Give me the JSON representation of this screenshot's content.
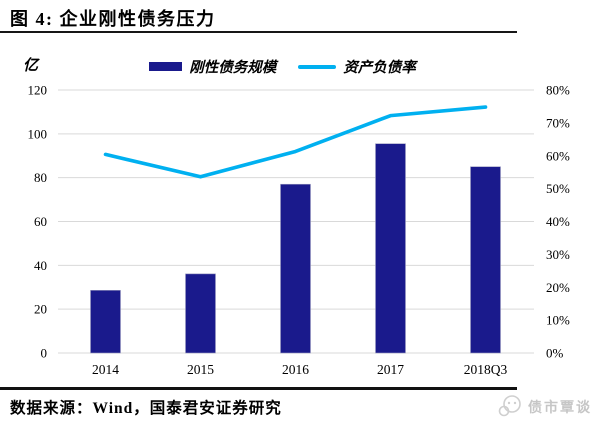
{
  "header": {
    "title": "图 4: 企业刚性债务压力"
  },
  "legend": [
    {
      "label": "刚性债务规模",
      "type": "bar",
      "color": "#1a1a8c"
    },
    {
      "label": "资产负债率",
      "type": "line",
      "color": "#00b0f0"
    }
  ],
  "chart_data": {
    "type": "bar",
    "categories": [
      "2014",
      "2015",
      "2016",
      "2017",
      "2018Q3"
    ],
    "series": [
      {
        "name": "刚性债务规模",
        "type": "bar",
        "axis": "left",
        "color": "#1a1a8c",
        "values": [
          28.6,
          36.1,
          77,
          95.5,
          85
        ]
      },
      {
        "name": "资产负债率",
        "type": "line",
        "axis": "right",
        "color": "#00b0f0",
        "values": [
          60.4,
          53.6,
          61.3,
          72.2,
          74.8
        ]
      }
    ],
    "left_axis": {
      "unit": "亿",
      "min": 0,
      "max": 120,
      "step": 20,
      "ticks": [
        "0",
        "20",
        "40",
        "60",
        "80",
        "100",
        "120"
      ]
    },
    "right_axis": {
      "unit": "%",
      "min": 0,
      "max": 80,
      "step": 10,
      "ticks": [
        "0%",
        "10%",
        "20%",
        "30%",
        "40%",
        "50%",
        "60%",
        "70%",
        "80%"
      ]
    },
    "grid": true,
    "grid_color": "#d9d9d9",
    "legend_position": "top",
    "title": "图 4: 企业刚性债务压力"
  },
  "footer": {
    "source": "数据来源：Wind，国泰君安证券研究",
    "watermark": "债市覃谈"
  }
}
